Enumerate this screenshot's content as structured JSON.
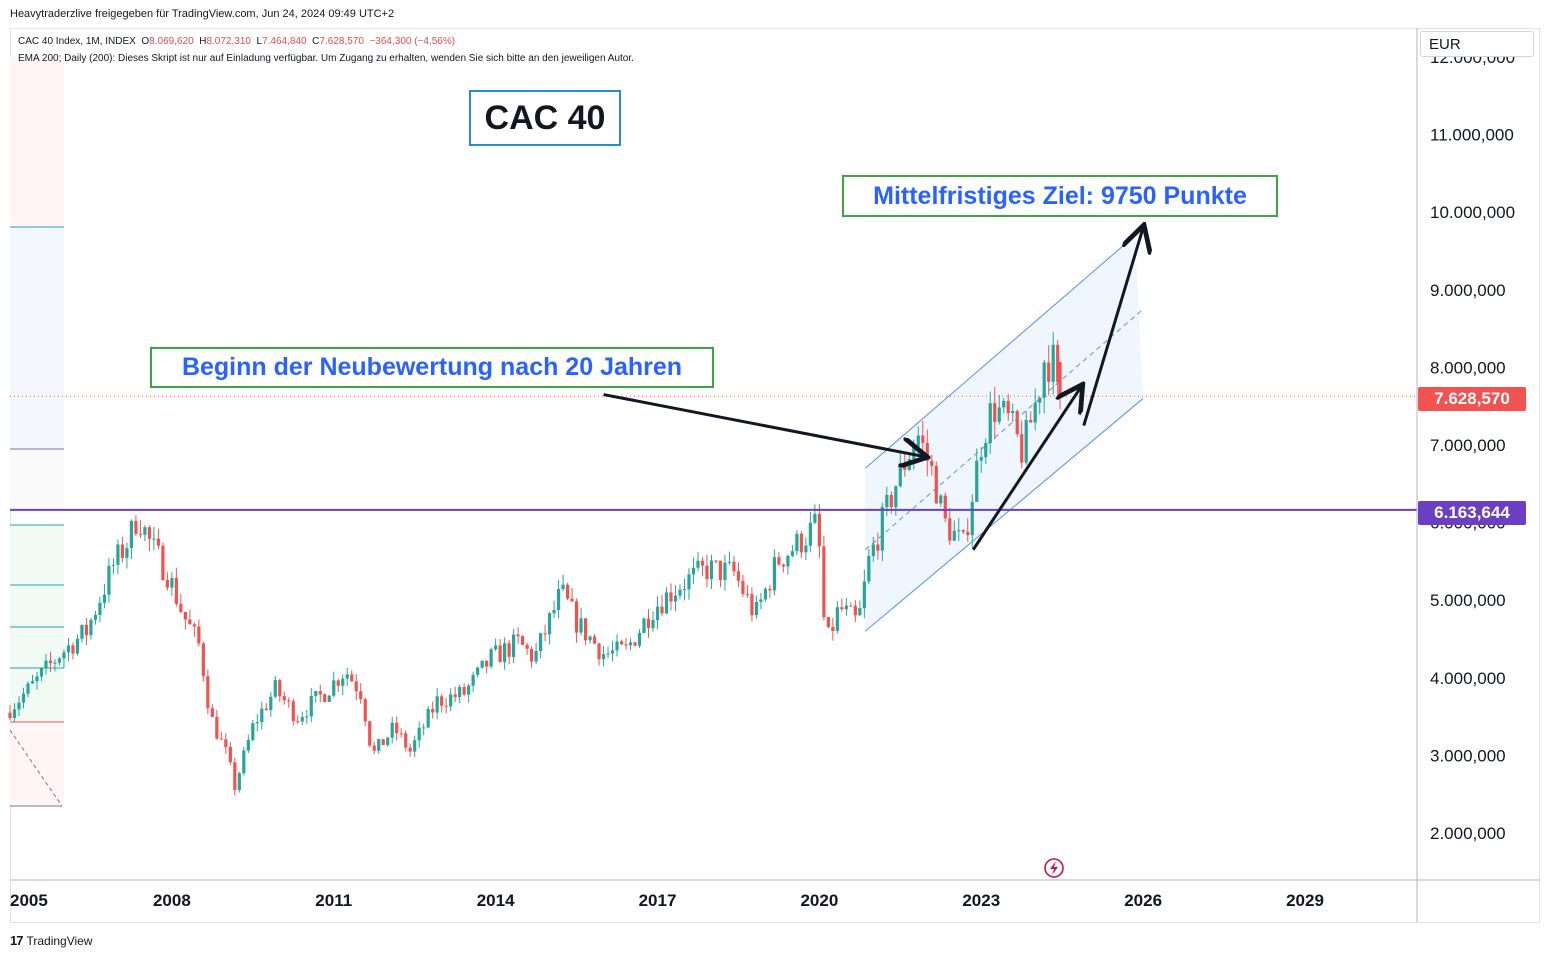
{
  "header": {
    "publisher_line": "Heavytraderzlive freigegeben für TradingView.com, Jun 24, 2024 09:49 UTC+2"
  },
  "legend": {
    "symbol": "CAC 40 Index, 1M, INDEX",
    "open_label": "O",
    "open": "8.069,620",
    "high_label": "H",
    "high": "8.072,310",
    "low_label": "L",
    "low": "7.464,840",
    "close_label": "C",
    "close": "7.628,570",
    "change": "−364,300 (−4,56%)",
    "indicator": "EMA 200; Daily (200): Dieses Skript ist nur auf Einladung verfügbar. Um Zugang zu erhalten, wenden Sie sich bitte an den jeweiligen Autor."
  },
  "currency": "EUR",
  "tags": {
    "last_price": "7.628,570",
    "level": "6.163,644"
  },
  "annotations": {
    "title": "CAC 40",
    "target": "Mittelfristiges Ziel: 9750 Punkte",
    "revaluation": "Beginn der Neubewertung nach 20 Jahren"
  },
  "footer": {
    "brand": "TradingView",
    "logo_glyph": "17"
  },
  "colors": {
    "up": "#26a69a",
    "down": "#ef5350",
    "level_line": "#6a3fc2",
    "channel": "#5b8ff0",
    "channel_fill": "#eaf2fc",
    "label_text": "#2962ff",
    "label_border": "#43a047",
    "title_border": "#2a8ccf",
    "price_tag": "#f05350"
  },
  "chart_data": {
    "type": "candlestick",
    "timeframe": "1M",
    "y_ticks": [
      "2.000,000",
      "3.000,000",
      "4.000,000",
      "5.000,000",
      "6.000,000",
      "7.000,000",
      "8.000,000",
      "9.000,000",
      "10.000,000",
      "11.000,000",
      "12.000,000"
    ],
    "y_tick_values": [
      2000,
      3000,
      4000,
      5000,
      6000,
      7000,
      8000,
      9000,
      10000,
      11000,
      12000
    ],
    "x_ticks": [
      "2005",
      "2008",
      "2011",
      "2014",
      "2017",
      "2020",
      "2023",
      "2026",
      "2029"
    ],
    "x_tick_values": [
      2005,
      2008,
      2011,
      2014,
      2017,
      2020,
      2023,
      2026,
      2029
    ],
    "horizontal_level": 6163.644,
    "last_close": 7628.57,
    "target_level": 9750,
    "anchors": [
      [
        2005.0,
        3550
      ],
      [
        2005.5,
        3900
      ],
      [
        2006.0,
        4300
      ],
      [
        2006.5,
        4600
      ],
      [
        2007.0,
        5450
      ],
      [
        2007.3,
        5800
      ],
      [
        2007.45,
        6100
      ],
      [
        2007.7,
        5700
      ],
      [
        2008.0,
        5350
      ],
      [
        2008.3,
        4800
      ],
      [
        2008.6,
        4400
      ],
      [
        2008.8,
        3500
      ],
      [
        2009.1,
        3000
      ],
      [
        2009.25,
        2600
      ],
      [
        2009.6,
        3400
      ],
      [
        2010.0,
        3850
      ],
      [
        2010.4,
        3500
      ],
      [
        2010.9,
        3800
      ],
      [
        2011.3,
        4100
      ],
      [
        2011.6,
        3800
      ],
      [
        2011.8,
        3000
      ],
      [
        2012.2,
        3350
      ],
      [
        2012.5,
        3050
      ],
      [
        2013.0,
        3700
      ],
      [
        2013.5,
        3800
      ],
      [
        2014.0,
        4250
      ],
      [
        2014.5,
        4450
      ],
      [
        2014.8,
        4250
      ],
      [
        2015.3,
        5100
      ],
      [
        2015.6,
        4700
      ],
      [
        2016.1,
        4300
      ],
      [
        2016.5,
        4350
      ],
      [
        2017.0,
        4900
      ],
      [
        2017.5,
        5200
      ],
      [
        2018.0,
        5400
      ],
      [
        2018.5,
        5350
      ],
      [
        2018.9,
        4800
      ],
      [
        2019.3,
        5500
      ],
      [
        2019.8,
        5800
      ],
      [
        2020.05,
        6000
      ],
      [
        2020.2,
        4400
      ],
      [
        2020.45,
        4900
      ],
      [
        2020.8,
        4700
      ],
      [
        2021.0,
        5500
      ],
      [
        2021.5,
        6500
      ],
      [
        2021.9,
        7150
      ],
      [
        2022.2,
        6600
      ],
      [
        2022.4,
        6000
      ],
      [
        2022.75,
        5700
      ],
      [
        2023.1,
        7100
      ],
      [
        2023.3,
        7500
      ],
      [
        2023.6,
        7300
      ],
      [
        2023.85,
        6900
      ],
      [
        2024.15,
        7700
      ],
      [
        2024.25,
        8100
      ],
      [
        2024.42,
        8070
      ],
      [
        2024.45,
        7628.57
      ]
    ],
    "last_candle": {
      "open": 8069.62,
      "high": 8072.31,
      "low": 7464.84,
      "close": 7628.57
    },
    "channel": {
      "lower": [
        [
          2020.85,
          4600
        ],
        [
          2026.0,
          7600
        ]
      ],
      "upper": [
        [
          2020.85,
          6700
        ],
        [
          2025.85,
          9700
        ]
      ],
      "median": [
        [
          2020.85,
          5650
        ],
        [
          2026.0,
          8750
        ]
      ]
    },
    "arrows": [
      {
        "from": [
          2016.0,
          7650
        ],
        "to": [
          2021.95,
          6850
        ]
      },
      {
        "from": [
          2022.85,
          5650
        ],
        "to": [
          2024.85,
          7750
        ]
      },
      {
        "from": [
          2024.9,
          7250
        ],
        "to": [
          2026.0,
          9800
        ]
      }
    ]
  }
}
